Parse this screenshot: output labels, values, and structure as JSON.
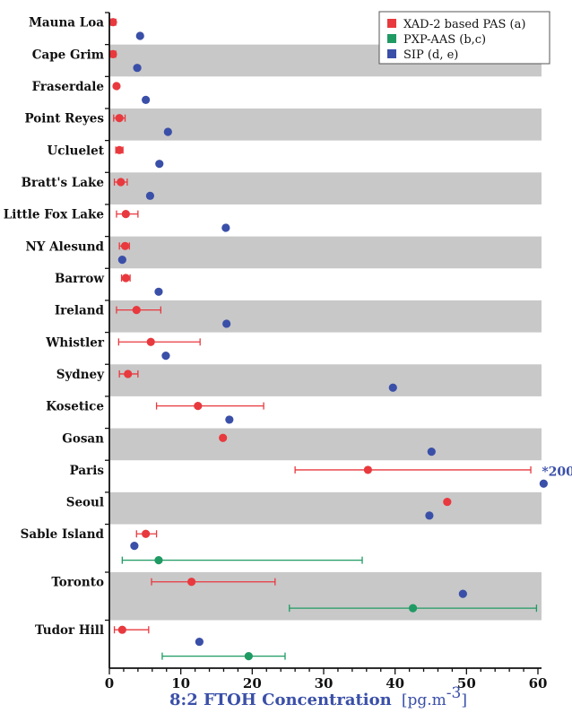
{
  "chart_data": {
    "type": "scatter",
    "title": "",
    "xlabel": "8:2 FTOH Concentration",
    "xlabel_unit": "[pg.m",
    "xlabel_unit_sup": "-3",
    "xlabel_unit_close": "]",
    "xlim": [
      0,
      60
    ],
    "xticks": [
      "0",
      "10",
      "20",
      "30",
      "40",
      "50",
      "60"
    ],
    "legend_position": "top-right",
    "band_color": "#c8c8c8",
    "series": [
      {
        "name": "XAD-2 based PAS (a)",
        "key": "xad",
        "color": "#e8393e"
      },
      {
        "name": "PXP-AAS (b,c)",
        "key": "pxp",
        "color": "#1f9a63"
      },
      {
        "name": "SIP (d, e)",
        "key": "sip",
        "color": "#3a4fa8"
      }
    ],
    "sites": [
      {
        "name": "Mauna Loa",
        "shaded": false,
        "points": [
          {
            "series": "xad",
            "value": 0.5,
            "err": [
              0.2,
              0.9
            ]
          },
          {
            "series": "sip",
            "value": 4.3
          }
        ]
      },
      {
        "name": "Cape Grim",
        "shaded": true,
        "points": [
          {
            "series": "xad",
            "value": 0.5,
            "err": [
              0.2,
              0.9
            ]
          },
          {
            "series": "sip",
            "value": 3.9
          }
        ]
      },
      {
        "name": "Fraserdale",
        "shaded": false,
        "points": [
          {
            "series": "xad",
            "value": 1.0
          },
          {
            "series": "sip",
            "value": 5.1
          }
        ]
      },
      {
        "name": "Point Reyes",
        "shaded": true,
        "points": [
          {
            "series": "xad",
            "value": 1.4,
            "err": [
              0.6,
              2.2
            ]
          },
          {
            "series": "sip",
            "value": 8.2
          }
        ]
      },
      {
        "name": "Ucluelet",
        "shaded": false,
        "points": [
          {
            "series": "xad",
            "value": 1.4,
            "err": [
              0.9,
              1.9
            ]
          },
          {
            "series": "sip",
            "value": 7.0
          }
        ]
      },
      {
        "name": "Bratt's Lake",
        "shaded": true,
        "points": [
          {
            "series": "xad",
            "value": 1.6,
            "err": [
              0.7,
              2.5
            ]
          },
          {
            "series": "sip",
            "value": 5.7
          }
        ]
      },
      {
        "name": "Little Fox Lake",
        "shaded": false,
        "points": [
          {
            "series": "xad",
            "value": 2.3,
            "err": [
              1.0,
              4.0
            ]
          },
          {
            "series": "sip",
            "value": 16.3
          }
        ]
      },
      {
        "name": "NY Alesund",
        "shaded": true,
        "points": [
          {
            "series": "xad",
            "value": 2.2,
            "err": [
              1.4,
              2.8
            ]
          },
          {
            "series": "sip",
            "value": 1.8
          }
        ]
      },
      {
        "name": "Barrow",
        "shaded": false,
        "points": [
          {
            "series": "xad",
            "value": 2.3,
            "err": [
              1.7,
              2.9
            ]
          },
          {
            "series": "sip",
            "value": 6.9
          }
        ]
      },
      {
        "name": "Ireland",
        "shaded": true,
        "points": [
          {
            "series": "xad",
            "value": 3.8,
            "err": [
              1.0,
              7.2
            ]
          },
          {
            "series": "sip",
            "value": 16.4
          }
        ]
      },
      {
        "name": "Whistler",
        "shaded": false,
        "points": [
          {
            "series": "xad",
            "value": 5.8,
            "err": [
              1.3,
              12.7
            ]
          },
          {
            "series": "sip",
            "value": 7.9
          }
        ]
      },
      {
        "name": "Sydney",
        "shaded": true,
        "points": [
          {
            "series": "xad",
            "value": 2.6,
            "err": [
              1.4,
              4.0
            ]
          },
          {
            "series": "sip",
            "value": 39.7
          }
        ]
      },
      {
        "name": "Kosetice",
        "shaded": false,
        "points": [
          {
            "series": "xad",
            "value": 12.4,
            "err": [
              6.6,
              21.6
            ]
          },
          {
            "series": "sip",
            "value": 16.8
          }
        ]
      },
      {
        "name": "Gosan",
        "shaded": true,
        "points": [
          {
            "series": "xad",
            "value": 15.9
          },
          {
            "series": "sip",
            "value": 45.1
          }
        ]
      },
      {
        "name": "Paris",
        "shaded": false,
        "points": [
          {
            "series": "xad",
            "value": 36.2,
            "err": [
              26.0,
              59.0
            ]
          },
          {
            "series": "sip",
            "value": 60.8,
            "annotation": "*200"
          }
        ]
      },
      {
        "name": "Seoul",
        "shaded": true,
        "points": [
          {
            "series": "xad",
            "value": 47.3
          },
          {
            "series": "sip",
            "value": 44.8
          }
        ]
      },
      {
        "name": "Sable Island",
        "shaded": false,
        "points": [
          {
            "series": "xad",
            "value": 5.1,
            "err": [
              3.8,
              6.6
            ]
          },
          {
            "series": "sip",
            "value": 3.5
          },
          {
            "series": "pxp",
            "value": 6.9,
            "err": [
              1.8,
              35.4
            ]
          }
        ]
      },
      {
        "name": "Toronto",
        "shaded": true,
        "points": [
          {
            "series": "xad",
            "value": 11.5,
            "err": [
              5.9,
              23.2
            ]
          },
          {
            "series": "sip",
            "value": 49.5
          },
          {
            "series": "pxp",
            "value": 42.5,
            "err": [
              25.2,
              59.8
            ]
          }
        ]
      },
      {
        "name": "Tudor Hill",
        "shaded": false,
        "points": [
          {
            "series": "xad",
            "value": 1.8,
            "err": [
              0.7,
              5.5
            ]
          },
          {
            "series": "sip",
            "value": 12.6
          },
          {
            "series": "pxp",
            "value": 19.5,
            "err": [
              7.4,
              24.6
            ]
          }
        ]
      }
    ]
  }
}
